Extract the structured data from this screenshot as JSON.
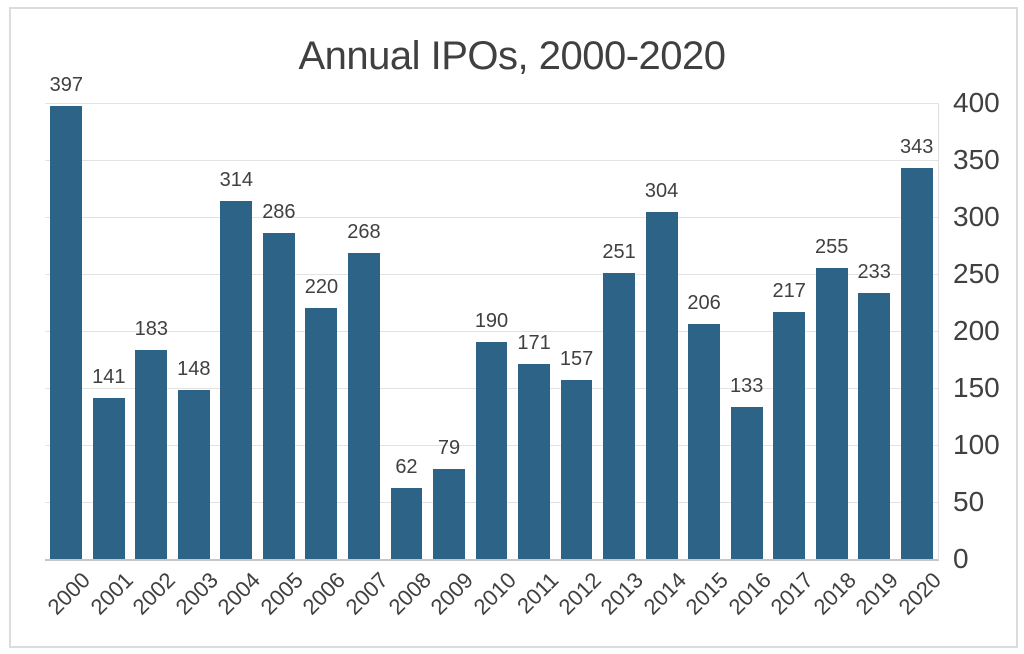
{
  "chart_data": {
    "type": "bar",
    "title": "Annual IPOs, 2000-2020",
    "categories": [
      "2000",
      "2001",
      "2002",
      "2003",
      "2004",
      "2005",
      "2006",
      "2007",
      "2008",
      "2009",
      "2010",
      "2011",
      "2012",
      "2013",
      "2014",
      "2015",
      "2016",
      "2017",
      "2018",
      "2019",
      "2020"
    ],
    "values": [
      397,
      141,
      183,
      148,
      314,
      286,
      220,
      268,
      62,
      79,
      190,
      171,
      157,
      251,
      304,
      206,
      133,
      217,
      255,
      233,
      343
    ],
    "data_labels_shown": true,
    "xlabel": "",
    "ylabel": "",
    "ylim": [
      0,
      400
    ],
    "yticks": [
      0,
      50,
      100,
      150,
      200,
      250,
      300,
      350,
      400
    ],
    "y_axis_side": "right",
    "grid": "horizontal",
    "legend": "none",
    "colors": {
      "bar": "#2d6387",
      "text": "#404040",
      "gridline": "#e3e3e3",
      "axis_line": "#c6c6c6",
      "frame_border": "#dcdcdc",
      "background": "#ffffff"
    }
  }
}
